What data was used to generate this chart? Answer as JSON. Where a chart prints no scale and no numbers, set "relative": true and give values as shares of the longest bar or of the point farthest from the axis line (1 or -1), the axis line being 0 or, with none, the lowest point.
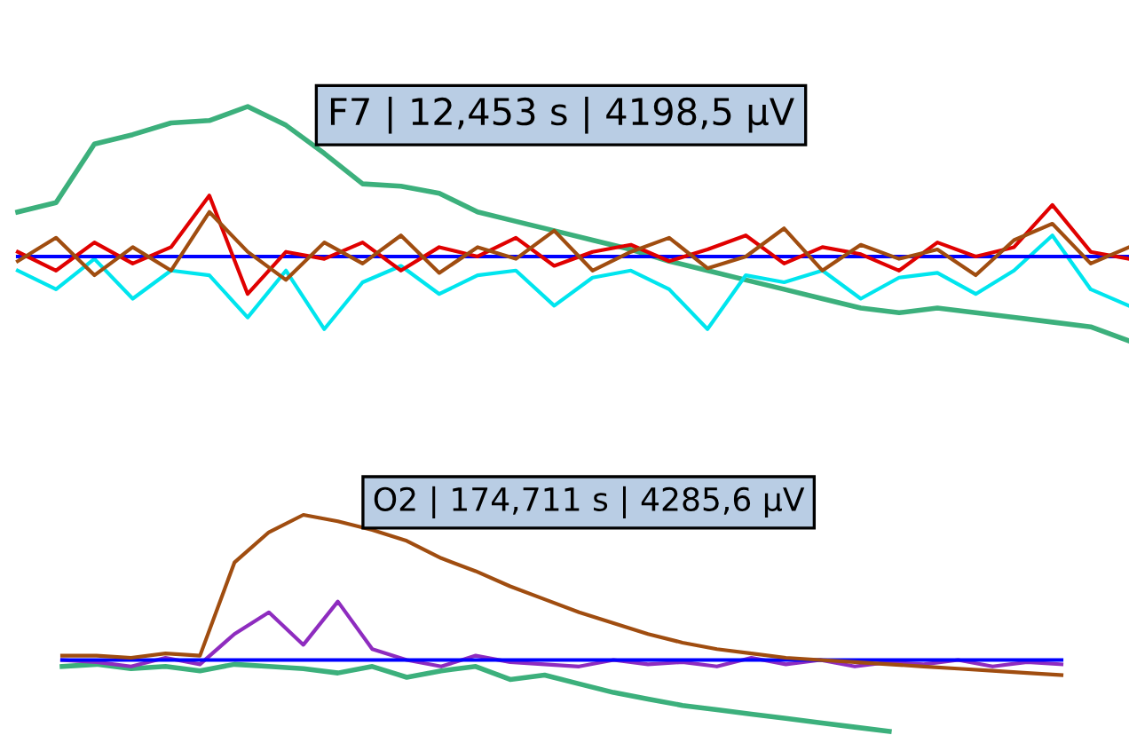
{
  "chart_data": [
    {
      "type": "line",
      "relative": true,
      "grid": false,
      "legend": false,
      "categories": [
        null,
        null,
        null,
        null,
        null,
        null,
        null,
        null,
        null,
        null,
        null,
        null,
        null,
        null,
        null,
        null,
        null,
        null,
        null,
        null,
        null,
        null,
        null,
        null,
        null,
        null,
        null,
        null,
        null,
        null
      ],
      "series": [
        {
          "color": "#3cb07c",
          "values": [
            0.55,
            0.59,
            0.84,
            0.88,
            0.93,
            0.94,
            1.0,
            0.92,
            0.8,
            0.67,
            0.66,
            0.63,
            0.55,
            0.51,
            0.47,
            0.43,
            0.39,
            0.34,
            0.3,
            0.26,
            0.22,
            0.18,
            0.14,
            0.12,
            0.14,
            0.12,
            0.1,
            0.08,
            0.06,
            0.0
          ]
        },
        {
          "color": "#00e5ee",
          "values": [
            0.3,
            0.22,
            0.35,
            0.18,
            0.3,
            0.28,
            0.1,
            0.3,
            0.05,
            0.25,
            0.32,
            0.2,
            0.28,
            0.3,
            0.15,
            0.27,
            0.3,
            0.22,
            0.05,
            0.28,
            0.25,
            0.3,
            0.18,
            0.27,
            0.29,
            0.2,
            0.3,
            0.45,
            0.22,
            0.15
          ]
        },
        {
          "color": "#0000ff",
          "values": [
            0.36,
            0.36,
            0.36,
            0.36,
            0.36,
            0.36,
            0.36,
            0.36,
            0.36,
            0.36,
            0.36,
            0.36,
            0.36,
            0.36,
            0.36,
            0.36,
            0.36,
            0.36,
            0.36,
            0.36,
            0.36,
            0.36,
            0.36,
            0.36,
            0.36,
            0.36,
            0.36,
            0.36,
            0.36,
            0.36
          ]
        },
        {
          "color": "#e00000",
          "values": [
            0.38,
            0.3,
            0.42,
            0.33,
            0.4,
            0.62,
            0.2,
            0.38,
            0.35,
            0.42,
            0.3,
            0.4,
            0.36,
            0.44,
            0.32,
            0.38,
            0.41,
            0.34,
            0.39,
            0.45,
            0.33,
            0.4,
            0.37,
            0.3,
            0.42,
            0.36,
            0.4,
            0.58,
            0.38,
            0.35
          ]
        },
        {
          "color": "#a04d10",
          "values": [
            0.34,
            0.44,
            0.28,
            0.4,
            0.3,
            0.55,
            0.38,
            0.26,
            0.42,
            0.33,
            0.45,
            0.29,
            0.4,
            0.35,
            0.47,
            0.3,
            0.38,
            0.44,
            0.31,
            0.36,
            0.48,
            0.3,
            0.41,
            0.35,
            0.39,
            0.28,
            0.43,
            0.5,
            0.33,
            0.4
          ]
        }
      ],
      "annotations": [
        "F7 | 12,453 s | 4198,5 µV"
      ]
    },
    {
      "type": "line",
      "relative": true,
      "grid": false,
      "legend": false,
      "categories": [
        null,
        null,
        null,
        null,
        null,
        null,
        null,
        null,
        null,
        null,
        null,
        null,
        null,
        null,
        null,
        null,
        null,
        null,
        null,
        null,
        null,
        null,
        null,
        null,
        null,
        null,
        null,
        null,
        null,
        null
      ],
      "series": [
        {
          "color": "#3cb07c",
          "values": [
            0.3,
            0.31,
            0.29,
            0.3,
            0.28,
            0.31,
            0.3,
            0.29,
            0.27,
            0.3,
            0.25,
            0.28,
            0.3,
            0.24,
            0.26,
            0.22,
            0.18,
            0.15,
            0.12,
            0.1,
            0.08,
            0.06,
            0.04,
            0.02,
            0.0,
            null,
            null,
            null,
            null,
            null
          ]
        },
        {
          "color": "#8e2cbf",
          "values": [
            0.33,
            0.32,
            0.3,
            0.34,
            0.31,
            0.45,
            0.55,
            0.4,
            0.6,
            0.38,
            0.33,
            0.3,
            0.35,
            0.32,
            0.31,
            0.3,
            0.33,
            0.31,
            0.32,
            0.3,
            0.34,
            0.31,
            0.33,
            0.3,
            0.32,
            0.31,
            0.33,
            0.3,
            0.32,
            0.31
          ]
        },
        {
          "color": "#0000ff",
          "values": [
            0.33,
            0.33,
            0.33,
            0.33,
            0.33,
            0.33,
            0.33,
            0.33,
            0.33,
            0.33,
            0.33,
            0.33,
            0.33,
            0.33,
            0.33,
            0.33,
            0.33,
            0.33,
            0.33,
            0.33,
            0.33,
            0.33,
            0.33,
            0.33,
            0.33,
            0.33,
            0.33,
            0.33,
            0.33,
            0.33
          ]
        },
        {
          "color": "#a04d10",
          "values": [
            0.35,
            0.35,
            0.34,
            0.36,
            0.35,
            0.78,
            0.92,
            1.0,
            0.97,
            0.93,
            0.88,
            0.8,
            0.74,
            0.67,
            0.61,
            0.55,
            0.5,
            0.45,
            0.41,
            0.38,
            0.36,
            0.34,
            0.33,
            0.32,
            0.31,
            0.3,
            0.29,
            0.28,
            0.27,
            0.26
          ]
        }
      ],
      "annotations": [
        "O2 | 174,711 s | 4285,6 µV"
      ]
    }
  ]
}
